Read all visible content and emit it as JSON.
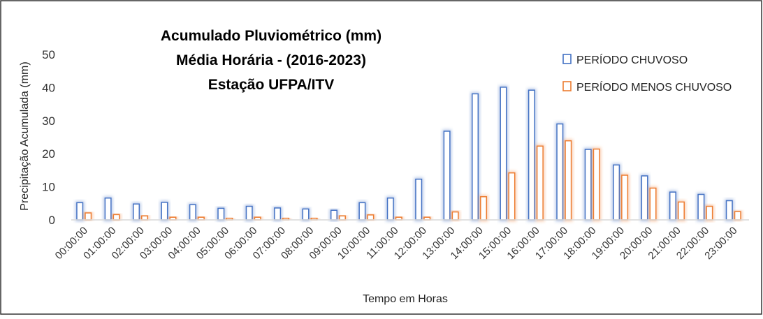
{
  "chart_data": {
    "type": "bar",
    "title_lines": [
      "Acumulado Pluviométrico (mm)",
      "Média Horária - (2016-2023)",
      "Estação UFPA/ITV"
    ],
    "xlabel": "Tempo em Horas",
    "ylabel": "Precipitação Acumulada (mm)",
    "ylim": [
      0,
      50
    ],
    "yticks": [
      0,
      10,
      20,
      30,
      40,
      50
    ],
    "grid": false,
    "legend_position": "top-right",
    "categories": [
      "00:00:00",
      "01:00:00",
      "02:00:00",
      "03:00:00",
      "04:00:00",
      "05:00:00",
      "06:00:00",
      "07:00:00",
      "08:00:00",
      "09:00:00",
      "10:00:00",
      "11:00:00",
      "12:00:00",
      "13:00:00",
      "14:00:00",
      "15:00:00",
      "16:00:00",
      "17:00:00",
      "18:00:00",
      "19:00:00",
      "20:00:00",
      "21:00:00",
      "22:00:00",
      "23:00:00"
    ],
    "series": [
      {
        "name": "PERÍODO CHUVOSO",
        "color": "#4472C4",
        "values": [
          5.2,
          6.6,
          4.8,
          5.3,
          4.6,
          3.5,
          4.1,
          3.6,
          3.3,
          2.9,
          5.2,
          6.6,
          12.3,
          26.8,
          38.1,
          40.1,
          39.2,
          29.0,
          21.3,
          16.6,
          13.3,
          8.4,
          7.7,
          5.8
        ]
      },
      {
        "name": "PERÍODO MENOS CHUVOSO",
        "color": "#ED7D31",
        "values": [
          2.1,
          1.6,
          1.2,
          0.8,
          0.8,
          0.5,
          0.8,
          0.5,
          0.5,
          1.2,
          1.5,
          0.8,
          0.8,
          2.4,
          7.0,
          14.2,
          22.3,
          23.9,
          21.4,
          13.5,
          9.6,
          5.4,
          4.1,
          2.5
        ]
      }
    ]
  }
}
